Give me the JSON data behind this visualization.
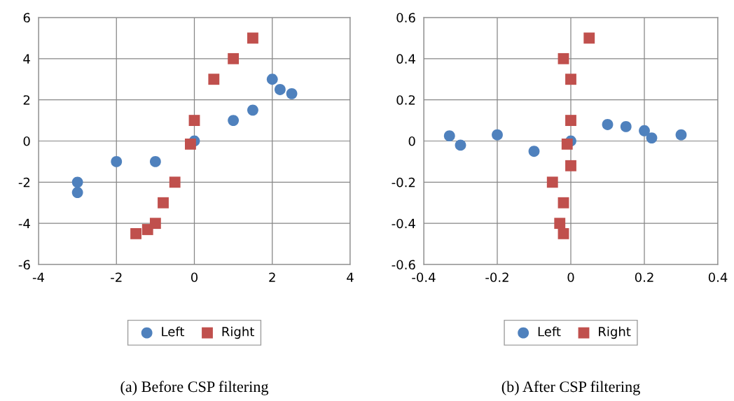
{
  "chart_data": [
    {
      "type": "scatter",
      "title": "(a) Before CSP filtering",
      "xlim": [
        -4,
        4
      ],
      "xticks": [
        -4,
        -2,
        0,
        2,
        4
      ],
      "ylim": [
        -6,
        6
      ],
      "yticks": [
        -6,
        -4,
        -2,
        0,
        2,
        4,
        6
      ],
      "grid": true,
      "legend": "bottom",
      "series": [
        {
          "name": "Left",
          "color": "#4f81bd",
          "marker": "circle",
          "x": [
            -3,
            -3,
            -2,
            -1,
            0,
            1,
            1.5,
            2,
            2.2,
            2.5
          ],
          "values": [
            -2,
            -2.5,
            -1,
            -1,
            0,
            1,
            1.5,
            3,
            2.5,
            2.3
          ]
        },
        {
          "name": "Right",
          "color": "#c0504d",
          "marker": "square",
          "x": [
            -1.5,
            -1.2,
            -1,
            -0.8,
            -0.5,
            -0.1,
            0,
            0.5,
            1,
            1.5
          ],
          "values": [
            -4.5,
            -4.3,
            -4,
            -3,
            -2,
            -0.15,
            1,
            3,
            4,
            5
          ]
        }
      ]
    },
    {
      "type": "scatter",
      "title": "(b) After CSP filtering",
      "xlim": [
        -0.4,
        0.4
      ],
      "xticks": [
        -0.4,
        -0.2,
        0,
        0.2,
        0.4
      ],
      "ylim": [
        -0.6,
        0.6
      ],
      "yticks": [
        -0.6,
        -0.4,
        -0.2,
        0,
        0.2,
        0.4,
        0.6
      ],
      "grid": true,
      "legend": "bottom",
      "series": [
        {
          "name": "Left",
          "color": "#4f81bd",
          "marker": "circle",
          "x": [
            -0.33,
            -0.3,
            -0.2,
            -0.1,
            0,
            0.1,
            0.15,
            0.2,
            0.22,
            0.3
          ],
          "values": [
            0.025,
            -0.02,
            0.03,
            -0.05,
            0,
            0.08,
            0.07,
            0.05,
            0.015,
            0.03
          ]
        },
        {
          "name": "Right",
          "color": "#c0504d",
          "marker": "square",
          "x": [
            0.05,
            -0.02,
            0,
            0,
            -0.01,
            0,
            -0.05,
            -0.02,
            -0.03,
            -0.02
          ],
          "values": [
            0.5,
            0.4,
            0.3,
            0.1,
            -0.015,
            -0.12,
            -0.2,
            -0.3,
            -0.4,
            -0.45
          ]
        }
      ]
    }
  ]
}
